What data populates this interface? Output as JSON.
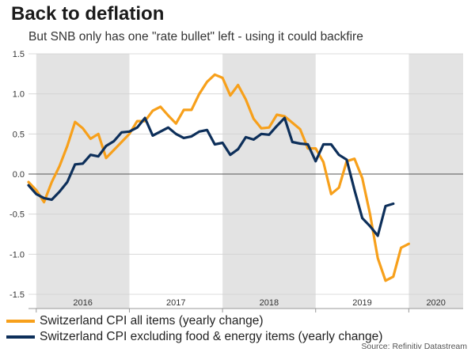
{
  "header": {
    "title": "Back to deflation",
    "subtitle": "But SNB only has one \"rate bullet\" left - using it could backfire"
  },
  "source": "Source: Refinitiv Datastream",
  "colors": {
    "cpi_all": "#f7a01b",
    "cpi_core": "#0d2f5a",
    "shade": "#e3e3e3"
  },
  "chart_data": {
    "type": "line",
    "title": "Back to deflation",
    "subtitle": "But SNB only has one \"rate bullet\" left - using it could backfire",
    "xlabel": "",
    "ylabel": "",
    "x_ticks": [
      "2016",
      "2017",
      "2018",
      "2019",
      "2020"
    ],
    "y_ticks": [
      "1.5",
      "1.0",
      "0.5",
      "0.0",
      "-0.5",
      "-1.0",
      "-1.5"
    ],
    "ylim": [
      -1.5,
      1.5
    ],
    "xlim": [
      "2015-12",
      "2020-08"
    ],
    "shaded_years": [
      "2016",
      "2018",
      "2020"
    ],
    "grid": "horizontal",
    "legend_position": "bottom",
    "series": [
      {
        "name": "Switzerland CPI all items (yearly change)",
        "points": [
          [
            "2015-12",
            -0.1
          ],
          [
            "2016-01",
            -0.2
          ],
          [
            "2016-02",
            -0.35
          ],
          [
            "2016-03",
            -0.1
          ],
          [
            "2016-04",
            0.1
          ],
          [
            "2016-05",
            0.35
          ],
          [
            "2016-06",
            0.65
          ],
          [
            "2016-07",
            0.57
          ],
          [
            "2016-08",
            0.44
          ],
          [
            "2016-09",
            0.5
          ],
          [
            "2016-10",
            0.2
          ],
          [
            "2016-11",
            0.3
          ],
          [
            "2016-12",
            0.4
          ],
          [
            "2017-01",
            0.5
          ],
          [
            "2017-02",
            0.66
          ],
          [
            "2017-03",
            0.66
          ],
          [
            "2017-04",
            0.79
          ],
          [
            "2017-05",
            0.84
          ],
          [
            "2017-06",
            0.73
          ],
          [
            "2017-07",
            0.63
          ],
          [
            "2017-08",
            0.8
          ],
          [
            "2017-09",
            0.8
          ],
          [
            "2017-10",
            1.0
          ],
          [
            "2017-11",
            1.15
          ],
          [
            "2017-12",
            1.24
          ],
          [
            "2018-01",
            1.2
          ],
          [
            "2018-02",
            0.98
          ],
          [
            "2018-03",
            1.11
          ],
          [
            "2018-04",
            0.93
          ],
          [
            "2018-05",
            0.69
          ],
          [
            "2018-06",
            0.57
          ],
          [
            "2018-07",
            0.58
          ],
          [
            "2018-08",
            0.74
          ],
          [
            "2018-09",
            0.72
          ],
          [
            "2018-10",
            0.64
          ],
          [
            "2018-11",
            0.56
          ],
          [
            "2018-12",
            0.32
          ],
          [
            "2019-01",
            0.32
          ],
          [
            "2019-02",
            0.15
          ],
          [
            "2019-03",
            -0.25
          ],
          [
            "2019-04",
            -0.17
          ],
          [
            "2019-05",
            0.16
          ],
          [
            "2019-06",
            0.19
          ],
          [
            "2019-07",
            -0.05
          ],
          [
            "2019-08",
            -0.5
          ],
          [
            "2019-09",
            -1.05
          ],
          [
            "2019-10",
            -1.33
          ],
          [
            "2019-11",
            -1.28
          ],
          [
            "2019-12",
            -0.92
          ],
          [
            "2020-01",
            -0.87
          ]
        ]
      },
      {
        "name": "Switzerland CPI excluding food & energy items (yearly change)",
        "points": [
          [
            "2015-12",
            -0.14
          ],
          [
            "2016-01",
            -0.25
          ],
          [
            "2016-02",
            -0.3
          ],
          [
            "2016-03",
            -0.32
          ],
          [
            "2016-04",
            -0.22
          ],
          [
            "2016-05",
            -0.1
          ],
          [
            "2016-06",
            0.12
          ],
          [
            "2016-07",
            0.13
          ],
          [
            "2016-08",
            0.24
          ],
          [
            "2016-09",
            0.22
          ],
          [
            "2016-10",
            0.35
          ],
          [
            "2016-11",
            0.41
          ],
          [
            "2016-12",
            0.52
          ],
          [
            "2017-01",
            0.53
          ],
          [
            "2017-02",
            0.58
          ],
          [
            "2017-03",
            0.7
          ],
          [
            "2017-04",
            0.48
          ],
          [
            "2017-05",
            0.53
          ],
          [
            "2017-06",
            0.58
          ],
          [
            "2017-07",
            0.5
          ],
          [
            "2017-08",
            0.45
          ],
          [
            "2017-09",
            0.47
          ],
          [
            "2017-10",
            0.53
          ],
          [
            "2017-11",
            0.55
          ],
          [
            "2017-12",
            0.37
          ],
          [
            "2018-01",
            0.39
          ],
          [
            "2018-02",
            0.24
          ],
          [
            "2018-03",
            0.31
          ],
          [
            "2018-04",
            0.46
          ],
          [
            "2018-05",
            0.43
          ],
          [
            "2018-06",
            0.5
          ],
          [
            "2018-07",
            0.49
          ],
          [
            "2018-08",
            0.6
          ],
          [
            "2018-09",
            0.7
          ],
          [
            "2018-10",
            0.4
          ],
          [
            "2018-11",
            0.38
          ],
          [
            "2018-12",
            0.37
          ],
          [
            "2019-01",
            0.16
          ],
          [
            "2019-02",
            0.37
          ],
          [
            "2019-03",
            0.37
          ],
          [
            "2019-04",
            0.24
          ],
          [
            "2019-05",
            0.18
          ],
          [
            "2019-06",
            -0.2
          ],
          [
            "2019-07",
            -0.55
          ],
          [
            "2019-08",
            -0.65
          ],
          [
            "2019-09",
            -0.77
          ],
          [
            "2019-10",
            -0.4
          ],
          [
            "2019-11",
            -0.37
          ]
        ]
      }
    ]
  }
}
